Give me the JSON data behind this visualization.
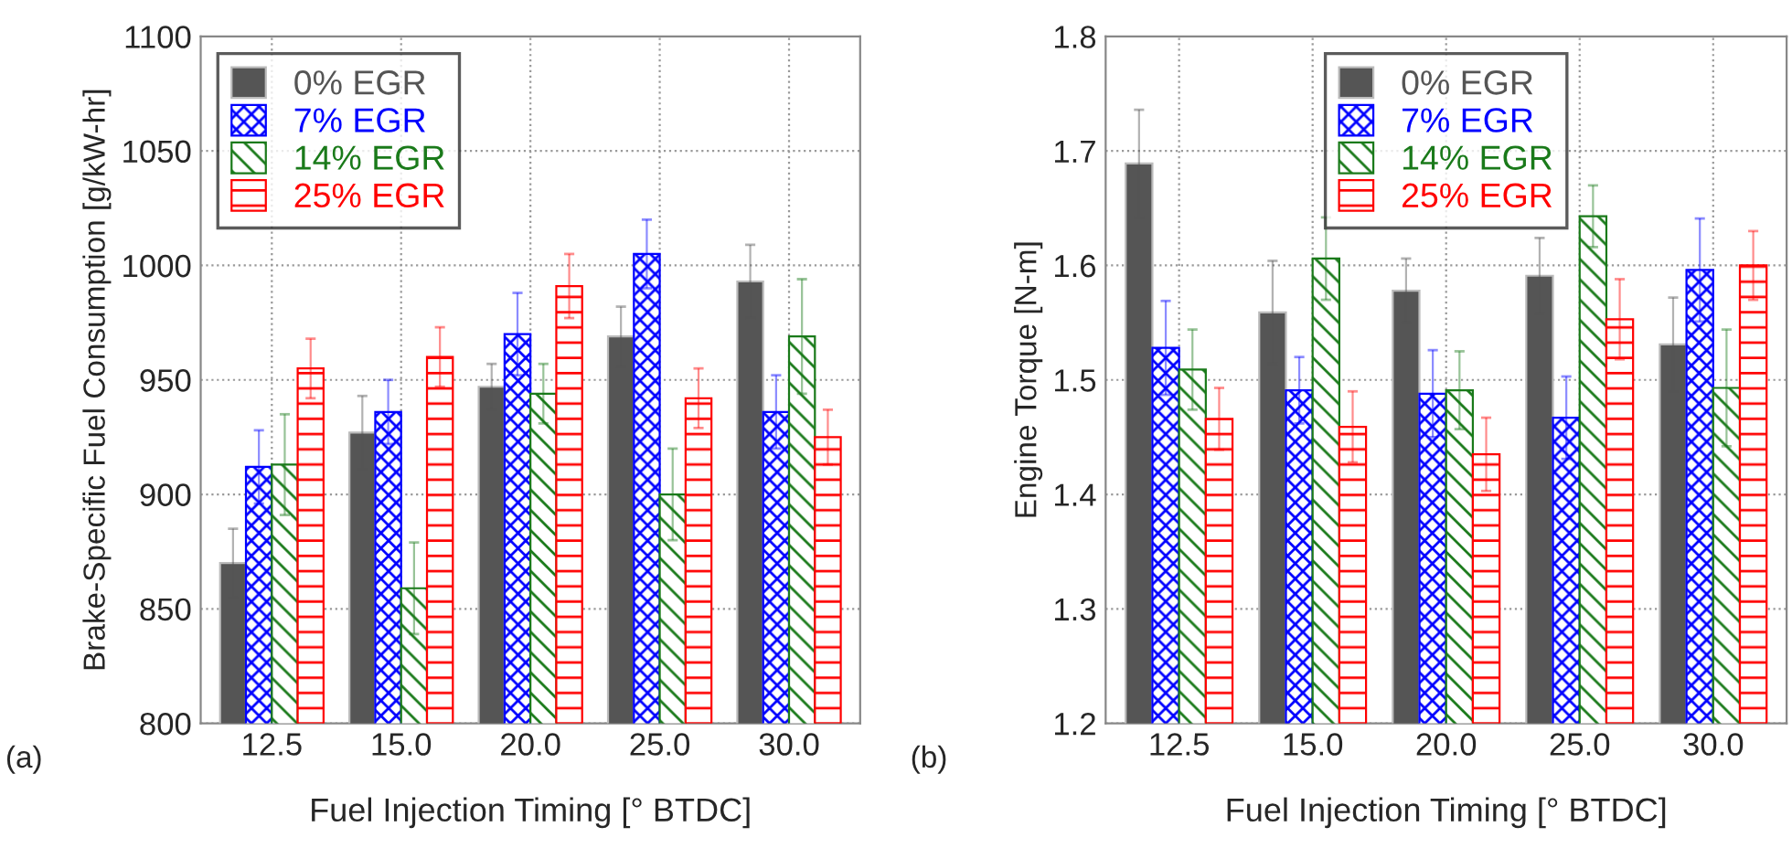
{
  "chart_data": [
    {
      "type": "bar",
      "xlabel": "Fuel Injection Timing [° BTDC]",
      "ylabel": "Brake-Specific Fuel Consumption [g/kW-hr]",
      "annotations": [
        "(a)"
      ],
      "categories": [
        "12.5",
        "15.0",
        "20.0",
        "25.0",
        "30.0"
      ],
      "series": [
        {
          "name": "0% EGR",
          "color": "#555555",
          "values": [
            870,
            927,
            947,
            969,
            993
          ],
          "errors": [
            15,
            16,
            10,
            13,
            16
          ]
        },
        {
          "name": "7% EGR",
          "color": "#0000ff",
          "values": [
            912,
            936,
            970,
            1005,
            936
          ],
          "errors": [
            16,
            14,
            18,
            15,
            16
          ]
        },
        {
          "name": "14% EGR",
          "color": "#1a7a1a",
          "values": [
            913,
            859,
            944,
            900,
            969
          ],
          "errors": [
            22,
            20,
            13,
            20,
            25
          ]
        },
        {
          "name": "25% EGR",
          "color": "#ff0000",
          "values": [
            955,
            960,
            991,
            942,
            925
          ],
          "errors": [
            13,
            13,
            14,
            13,
            12
          ]
        }
      ],
      "ylim": [
        800,
        1100
      ],
      "yticks": [
        800,
        850,
        900,
        950,
        1000,
        1050,
        1100
      ],
      "grid": true,
      "legend": "top left"
    },
    {
      "type": "bar",
      "xlabel": "Fuel Injection Timing [° BTDC]",
      "ylabel": "Engine Torque [N-m]",
      "annotations": [
        "(b)"
      ],
      "categories": [
        "12.5",
        "15.0",
        "20.0",
        "25.0",
        "30.0"
      ],
      "series": [
        {
          "name": "0% EGR",
          "color": "#555555",
          "values": [
            1.689,
            1.559,
            1.578,
            1.591,
            1.531
          ],
          "errors": [
            0.047,
            0.045,
            0.028,
            0.033,
            0.041
          ]
        },
        {
          "name": "7% EGR",
          "color": "#0000ff",
          "values": [
            1.528,
            1.491,
            1.488,
            1.467,
            1.596
          ],
          "errors": [
            0.041,
            0.029,
            0.038,
            0.036,
            0.045
          ]
        },
        {
          "name": "14% EGR",
          "color": "#1a7a1a",
          "values": [
            1.509,
            1.606,
            1.491,
            1.643,
            1.493
          ],
          "errors": [
            0.035,
            0.036,
            0.034,
            0.027,
            0.051
          ]
        },
        {
          "name": "25% EGR",
          "color": "#ff0000",
          "values": [
            1.466,
            1.459,
            1.435,
            1.553,
            1.6
          ],
          "errors": [
            0.027,
            0.031,
            0.032,
            0.035,
            0.03
          ]
        }
      ],
      "ylim": [
        1.2,
        1.8
      ],
      "yticks": [
        1.2,
        1.3,
        1.4,
        1.5,
        1.6,
        1.7,
        1.8
      ],
      "grid": true,
      "legend": "top"
    }
  ]
}
